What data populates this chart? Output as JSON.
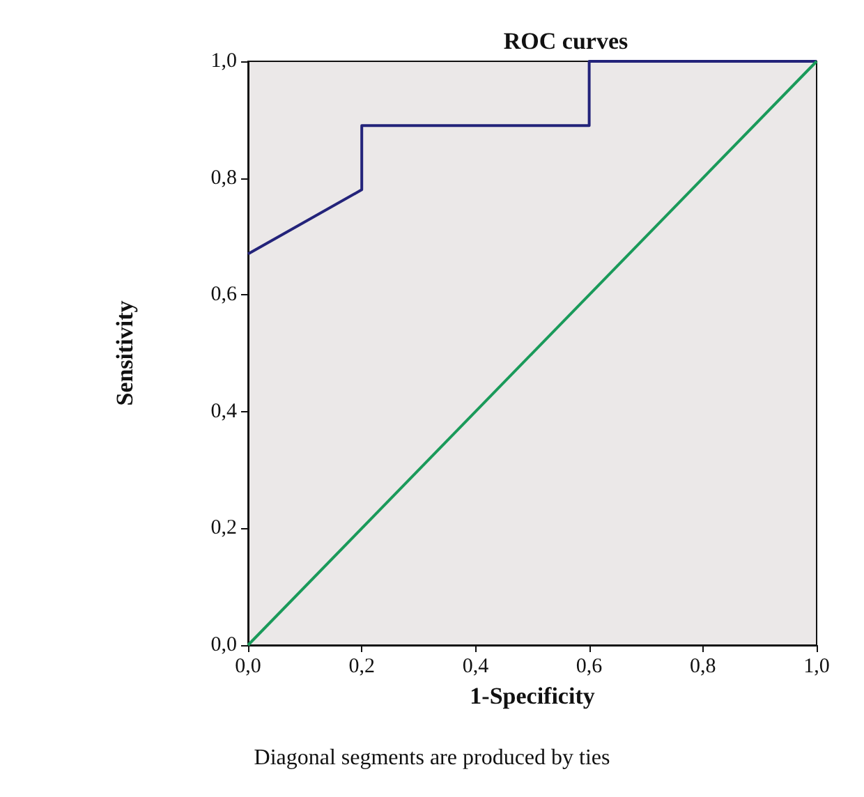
{
  "chart_data": {
    "type": "line",
    "title": "ROC curves",
    "xlabel": "1-Specificity",
    "ylabel": "Sensitivity",
    "annotations": [
      "Diagonal segments are produced by ties"
    ],
    "series": [
      {
        "color": "#23237a",
        "x": [
          0,
          0.2,
          0.2,
          0.6,
          0.6,
          1.0
        ],
        "values": [
          0.67,
          0.78,
          0.89,
          0.89,
          1.0,
          1.0
        ]
      },
      {
        "color": "#1a9a5a",
        "x": [
          0,
          1
        ],
        "values": [
          0,
          1
        ]
      }
    ],
    "xlim": [
      0,
      1
    ],
    "ylim": [
      0,
      1
    ],
    "xticks": [
      {
        "value": 0,
        "label": "0,0"
      },
      {
        "value": 0.2,
        "label": "0,2"
      },
      {
        "value": 0.4,
        "label": "0,4"
      },
      {
        "value": 0.6,
        "label": "0,6"
      },
      {
        "value": 0.8,
        "label": "0,8"
      },
      {
        "value": 1,
        "label": "1,0"
      }
    ],
    "yticks": [
      {
        "value": 0,
        "label": "0,0"
      },
      {
        "value": 0.2,
        "label": "0,2"
      },
      {
        "value": 0.4,
        "label": "0,4"
      },
      {
        "value": 0.6,
        "label": "0,6"
      },
      {
        "value": 0.8,
        "label": "0,8"
      },
      {
        "value": 1,
        "label": "1,0"
      }
    ],
    "marker": "none",
    "line_style": "solid"
  }
}
